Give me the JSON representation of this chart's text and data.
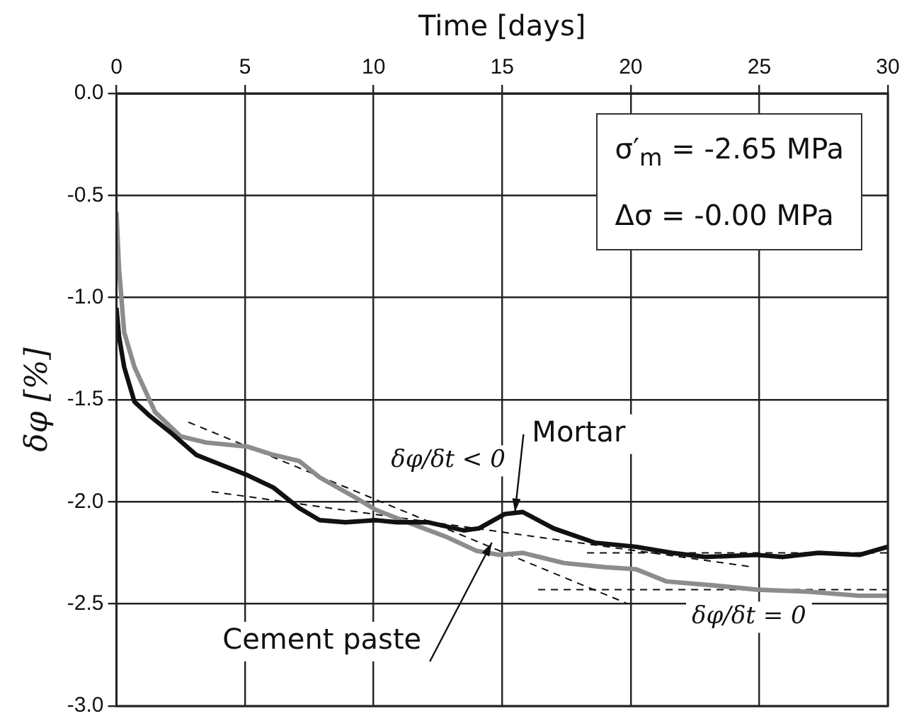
{
  "chart_data": {
    "type": "line",
    "xlabel": "Time [days]",
    "ylabel": "δφ [%]",
    "xlim": [
      0,
      30
    ],
    "xticks": [
      0,
      5,
      10,
      15,
      20,
      25,
      30
    ],
    "ylim": [
      -3,
      0
    ],
    "yticks": [
      {
        "value": 0,
        "label": "0.0"
      },
      {
        "value": -0.5,
        "label": "-0.5"
      },
      {
        "value": -1,
        "label": "-1.0"
      },
      {
        "value": -1.5,
        "label": "-1.5"
      },
      {
        "value": -2,
        "label": "-2.0"
      },
      {
        "value": -2.5,
        "label": "-2.5"
      },
      {
        "value": -3,
        "label": "-3.0"
      }
    ],
    "grid": true,
    "legend": false,
    "marker": "none",
    "line_style": "solid",
    "series": [
      {
        "color": "#111111",
        "x": [
          0,
          0.1,
          0.3,
          0.7,
          1.3,
          2.1,
          3.1,
          4.1,
          5.1,
          6.1,
          7.1,
          7.9,
          8.9,
          10.1,
          10.9,
          12.1,
          13.5,
          14.1,
          15.1,
          15.8,
          17,
          18.6,
          20.2,
          21.6,
          22.9,
          24.9,
          25.9,
          27.3,
          28.9,
          30
        ],
        "values": [
          -1.05,
          -1.19,
          -1.34,
          -1.51,
          -1.58,
          -1.66,
          -1.77,
          -1.82,
          -1.87,
          -1.93,
          -2.03,
          -2.09,
          -2.1,
          -2.09,
          -2.1,
          -2.1,
          -2.14,
          -2.13,
          -2.06,
          -2.05,
          -2.13,
          -2.2,
          -2.22,
          -2.25,
          -2.27,
          -2.26,
          -2.27,
          -2.25,
          -2.26,
          -2.22
        ]
      },
      {
        "color": "#8c8c8c",
        "x": [
          0,
          0.1,
          0.3,
          0.7,
          1.5,
          2.5,
          3.5,
          5.1,
          6.1,
          7.1,
          7.9,
          9.3,
          10.1,
          11.1,
          12.8,
          14,
          14.9,
          15.8,
          17.4,
          19,
          20.2,
          21.4,
          23.3,
          24.9,
          26.9,
          28.9,
          30
        ],
        "values": [
          -0.58,
          -0.86,
          -1.17,
          -1.34,
          -1.56,
          -1.68,
          -1.71,
          -1.73,
          -1.77,
          -1.8,
          -1.88,
          -1.98,
          -2.04,
          -2.09,
          -2.17,
          -2.24,
          -2.26,
          -2.25,
          -2.3,
          -2.32,
          -2.33,
          -2.39,
          -2.41,
          -2.43,
          -2.44,
          -2.46,
          -2.46
        ]
      },
      {
        "color": "#111111",
        "line_style": "dashed",
        "x": [
          2.8,
          19.9
        ],
        "values": [
          -1.61,
          -2.5
        ]
      },
      {
        "color": "#111111",
        "line_style": "dashed",
        "x": [
          3.7,
          24.8
        ],
        "values": [
          -1.95,
          -2.32
        ]
      },
      {
        "color": "#111111",
        "line_style": "dashed",
        "x": [
          16.4,
          30
        ],
        "values": [
          -2.43,
          -2.43
        ]
      },
      {
        "color": "#111111",
        "line_style": "dashed",
        "x": [
          18.3,
          30
        ],
        "values": [
          -2.25,
          -2.25
        ]
      }
    ],
    "annotations": [
      {
        "text": "Mortar",
        "x": 15.5,
        "y": -2.05
      },
      {
        "text": "Cement paste",
        "x": 14.6,
        "y": -2.2
      },
      "δφ/δt < 0",
      "δφ/δt = 0",
      "σ′$_{m}$ = -2.65 MPa",
      "Δσ = -0.00 MPa"
    ]
  }
}
